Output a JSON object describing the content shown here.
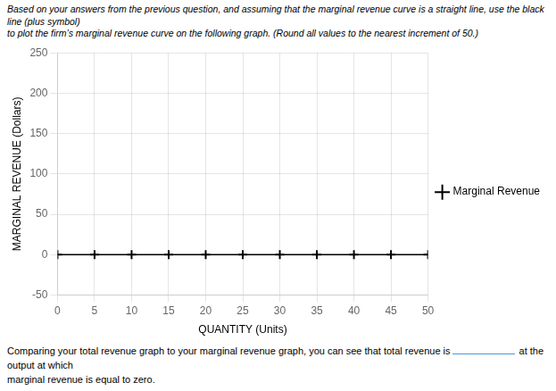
{
  "chart_data": {
    "type": "line",
    "title": [
      "Based on your answers from the previous question, and assuming that the marginal revenue curve is a straight line, use the black line (plus symbol)",
      "to plot the firm’s marginal revenue curve on the following graph. (Round all values to the nearest increment of 50.)"
    ],
    "x_label": "QUANTITY (Units)",
    "y_label": "MARGINAL REVENUE (Dollars)",
    "x": [
      0,
      5,
      10,
      15,
      20,
      25,
      30,
      35,
      40,
      45,
      50
    ],
    "series": [
      {
        "name": "Marginal Revenue",
        "color": "black",
        "marker": "plus",
        "line_style": "solid",
        "values": [
          0,
          0,
          0,
          0,
          0,
          0,
          0,
          0,
          0,
          0,
          0
        ]
      }
    ],
    "xlim": [
      0,
      50
    ],
    "xticks": [
      0,
      5,
      10,
      15,
      20,
      25,
      30,
      35,
      40,
      45,
      50
    ],
    "ylim": [
      -50,
      250
    ],
    "yticks": [
      -50,
      0,
      50,
      100,
      150,
      200,
      250
    ],
    "grid": true,
    "legend": "right",
    "annotations": [
      "Comparing your total revenue graph to your marginal revenue graph, you can see that total revenue is",
      " at the output at which",
      "marginal revenue is equal to zero."
    ]
  }
}
